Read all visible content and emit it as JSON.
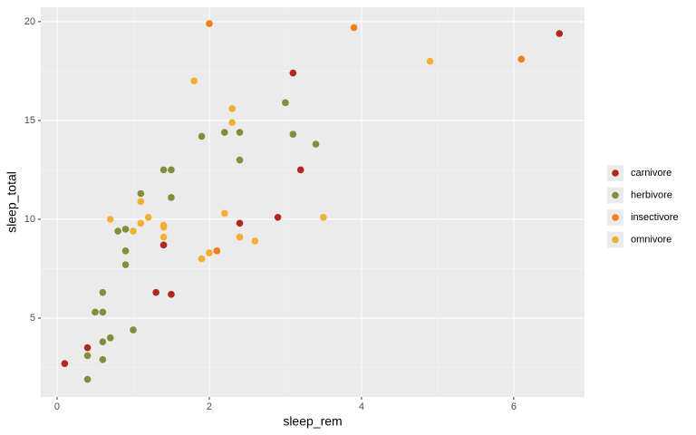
{
  "chart_data": {
    "type": "scatter",
    "x_label": "sleep_rem",
    "y_label": "sleep_total",
    "xlim": [
      -0.214,
      6.93
    ],
    "ylim": [
      1.01,
      20.73
    ],
    "xticks": [
      0,
      2,
      4,
      6
    ],
    "yticks": [
      5,
      10,
      15,
      20
    ],
    "grid": true,
    "legend_position": "right",
    "series": [
      {
        "name": "carnivore",
        "color": "#b2271e",
        "x": [
          0.1,
          0.4,
          1.3,
          1.5,
          1.4,
          2.4,
          2.9,
          3.2,
          3.1,
          6.6
        ],
        "y": [
          2.7,
          3.5,
          6.3,
          6.2,
          8.7,
          9.8,
          10.1,
          12.5,
          17.4,
          19.4
        ]
      },
      {
        "name": "herbivore",
        "color": "#7f8f3a",
        "x": [
          0.4,
          0.4,
          0.6,
          0.6,
          0.7,
          1.0,
          0.5,
          0.6,
          0.6,
          0.9,
          0.9,
          0.8,
          0.9,
          1.1,
          1.5,
          1.4,
          1.5,
          1.9,
          2.2,
          2.4,
          2.4,
          3.0,
          3.1,
          3.4
        ],
        "y": [
          1.9,
          3.1,
          2.9,
          3.8,
          4.0,
          4.4,
          5.3,
          5.3,
          6.3,
          7.7,
          8.4,
          9.4,
          9.5,
          11.3,
          11.1,
          12.5,
          12.5,
          14.2,
          14.4,
          14.4,
          13.0,
          15.9,
          14.3,
          13.8
        ]
      },
      {
        "name": "insectivore",
        "color": "#f07e1b",
        "x": [
          2.0,
          3.9,
          6.1,
          2.1
        ],
        "y": [
          19.9,
          19.7,
          18.1,
          8.4
        ]
      },
      {
        "name": "omnivore",
        "color": "#f2b033",
        "x": [
          0.7,
          1.0,
          1.1,
          1.2,
          1.1,
          1.4,
          1.4,
          1.4,
          1.9,
          2.0,
          2.2,
          2.3,
          2.3,
          1.8,
          2.4,
          2.6,
          3.5,
          4.9
        ],
        "y": [
          10.0,
          9.4,
          9.8,
          10.1,
          10.9,
          9.7,
          9.6,
          9.1,
          8.0,
          8.3,
          10.3,
          15.6,
          14.9,
          17.0,
          9.1,
          8.9,
          10.1,
          18.0
        ]
      }
    ]
  }
}
